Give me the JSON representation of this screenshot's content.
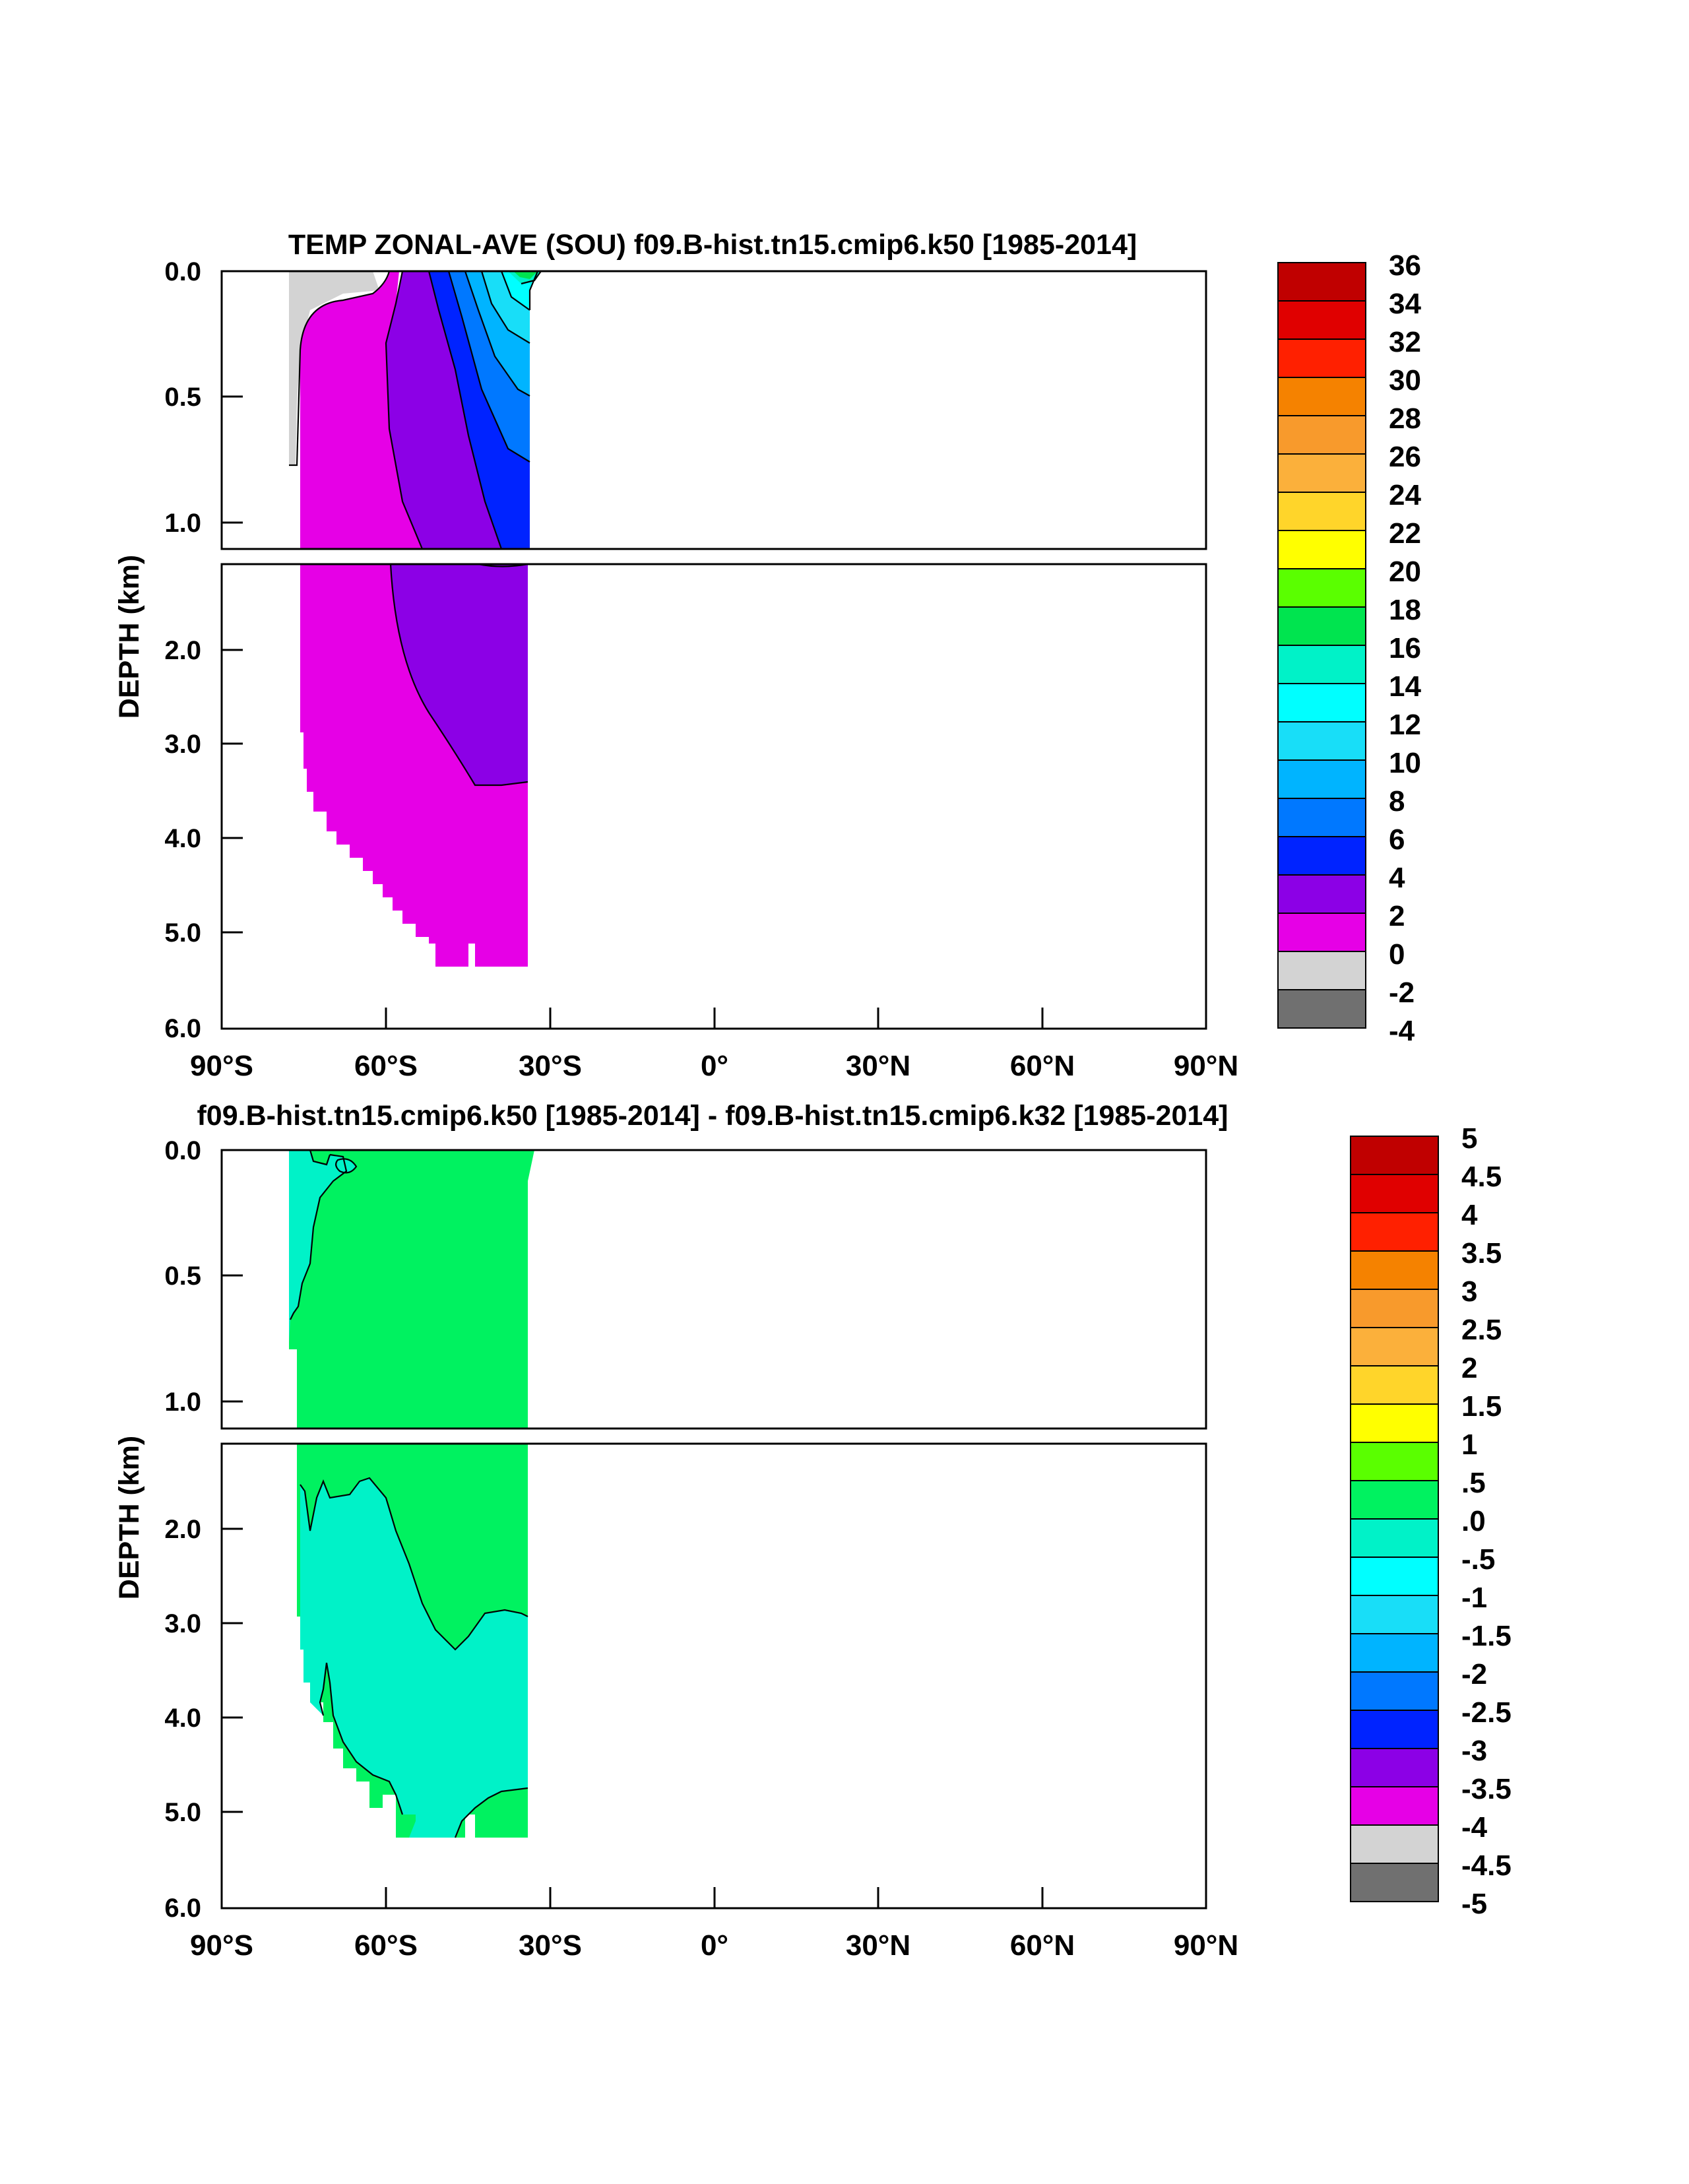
{
  "chart_data": [
    {
      "type": "heatmap",
      "title": "TEMP ZONAL-AVE (SOU) f09.B-hist.tn15.cmip6.k50 [1985-2014]",
      "ylabel": "DEPTH (km)",
      "xticks": [
        "90°S",
        "60°S",
        "30°S",
        "0°",
        "30°N",
        "60°N",
        "90°N"
      ],
      "xtick_values": [
        -90,
        -60,
        -30,
        0,
        30,
        60,
        90
      ],
      "yticks_upper": [
        "0.0",
        "0.5",
        "1.0"
      ],
      "yticks_upper_values": [
        0.0,
        0.5,
        1.0
      ],
      "yticks_lower": [
        "2.0",
        "3.0",
        "4.0",
        "5.0",
        "6.0"
      ],
      "yticks_lower_values": [
        2.0,
        3.0,
        4.0,
        5.0,
        6.0
      ],
      "xlim": [
        -90,
        90
      ],
      "ylim_upper": [
        0,
        1.1
      ],
      "ylim_lower": [
        1.1,
        6.0
      ],
      "data_extent_lat": [
        -78,
        -34
      ],
      "legend_labels": [
        "36",
        "34",
        "32",
        "30",
        "28",
        "26",
        "24",
        "22",
        "20",
        "18",
        "16",
        "14",
        "12",
        "10",
        "8",
        "6",
        "4",
        "2",
        "0",
        "-2",
        "-4"
      ],
      "legend_colors": [
        "#c00000",
        "#e00000",
        "#ff2000",
        "#f58200",
        "#f89a2c",
        "#fbb03b",
        "#ffd52a",
        "#ffff00",
        "#5aff00",
        "#00e44f",
        "#00f2c8",
        "#00ffff",
        "#18def8",
        "#00b4ff",
        "#0078ff",
        "#0023ff",
        "#8c00e6",
        "#e600e6",
        "#d3d3d3",
        "#707070"
      ]
    },
    {
      "type": "heatmap",
      "title": "f09.B-hist.tn15.cmip6.k50 [1985-2014] - f09.B-hist.tn15.cmip6.k32 [1985-2014]",
      "ylabel": "DEPTH (km)",
      "xticks": [
        "90°S",
        "60°S",
        "30°S",
        "0°",
        "30°N",
        "60°N",
        "90°N"
      ],
      "xtick_values": [
        -90,
        -60,
        -30,
        0,
        30,
        60,
        90
      ],
      "yticks_upper": [
        "0.0",
        "0.5",
        "1.0"
      ],
      "yticks_upper_values": [
        0.0,
        0.5,
        1.0
      ],
      "yticks_lower": [
        "2.0",
        "3.0",
        "4.0",
        "5.0",
        "6.0"
      ],
      "yticks_lower_values": [
        2.0,
        3.0,
        4.0,
        5.0,
        6.0
      ],
      "xlim": [
        -90,
        90
      ],
      "ylim_upper": [
        0,
        1.1
      ],
      "ylim_lower": [
        1.1,
        6.0
      ],
      "data_extent_lat": [
        -78,
        -34
      ],
      "legend_labels": [
        "5",
        "4.5",
        "4",
        "3.5",
        "3",
        "2.5",
        "2",
        "1.5",
        "1",
        ".5",
        ".0",
        "-.5",
        "-1",
        "-1.5",
        "-2",
        "-2.5",
        "-3",
        "-3.5",
        "-4",
        "-4.5",
        "-5"
      ],
      "legend_colors": [
        "#c00000",
        "#e00000",
        "#ff2000",
        "#f58200",
        "#f89a2c",
        "#fbb03b",
        "#ffd52a",
        "#ffff00",
        "#5aff00",
        "#00f260",
        "#00f2c8",
        "#00ffff",
        "#18def8",
        "#00b4ff",
        "#0078ff",
        "#0023ff",
        "#8c00e6",
        "#e600e6",
        "#d3d3d3",
        "#707070"
      ]
    }
  ]
}
